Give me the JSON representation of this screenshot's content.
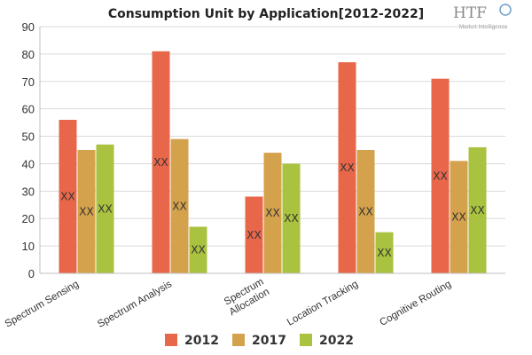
{
  "chart_data": {
    "type": "bar",
    "title": "Consumption Unit by  Application[2012-2022]",
    "categories": [
      "Spectrum Sensing",
      "Spectrum Analysis",
      "Spectrum Allocation",
      "Location Tracking",
      "Cognitive Routing"
    ],
    "series": [
      {
        "name": "2012",
        "color": "#e8674a",
        "values": [
          56,
          81,
          28,
          77,
          71
        ]
      },
      {
        "name": "2017",
        "color": "#d4a24c",
        "values": [
          45,
          49,
          44,
          45,
          41
        ]
      },
      {
        "name": "2022",
        "color": "#a9c23f",
        "values": [
          47,
          17,
          40,
          15,
          46
        ]
      }
    ],
    "data_label": "XX",
    "ylim": [
      0,
      90
    ],
    "yticks": [
      0,
      10,
      20,
      30,
      40,
      50,
      60,
      70,
      80,
      90
    ],
    "grid": true,
    "legend_position": "bottom"
  },
  "logo": {
    "text": "HTF",
    "subtext": "Market Intelligence"
  }
}
